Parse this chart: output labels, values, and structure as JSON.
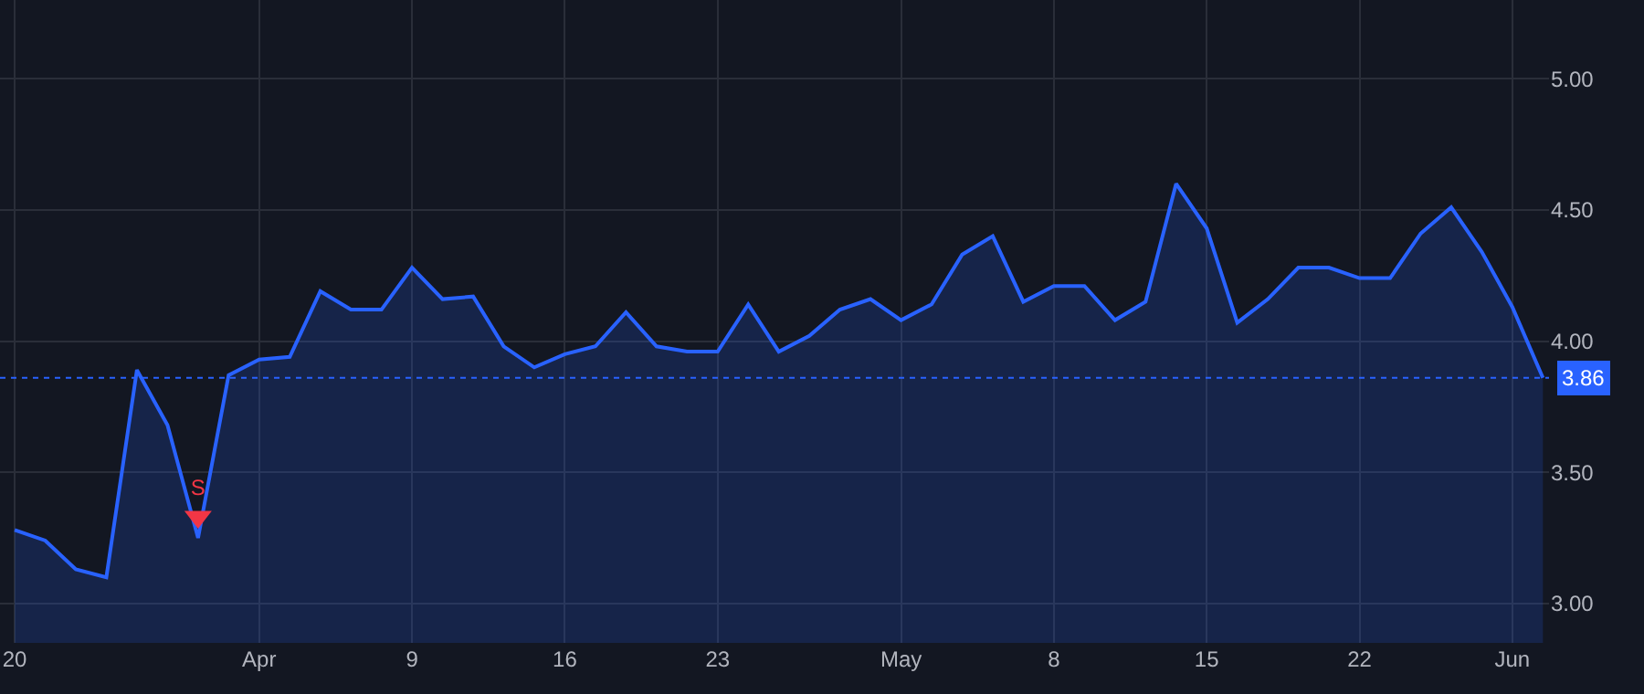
{
  "chart_data": {
    "type": "area",
    "categories": [
      "20",
      null,
      null,
      null,
      null,
      null,
      null,
      null,
      "Apr",
      null,
      null,
      null,
      null,
      "9",
      null,
      null,
      null,
      null,
      "16",
      null,
      null,
      null,
      null,
      "23",
      null,
      null,
      null,
      null,
      null,
      "May",
      null,
      null,
      null,
      null,
      "8",
      null,
      null,
      null,
      null,
      "15",
      null,
      null,
      null,
      null,
      "22",
      null,
      null,
      null,
      null,
      "Jun",
      null
    ],
    "series": [
      {
        "color": "#2962ff",
        "values": [
          3.28,
          3.24,
          3.13,
          3.1,
          3.89,
          3.68,
          3.25,
          3.87,
          3.93,
          3.94,
          4.19,
          4.12,
          4.12,
          4.28,
          4.16,
          4.17,
          3.98,
          3.9,
          3.95,
          3.98,
          4.11,
          3.98,
          3.96,
          3.96,
          4.14,
          3.96,
          4.02,
          4.12,
          4.16,
          4.08,
          4.14,
          4.33,
          4.4,
          4.15,
          4.21,
          4.21,
          4.08,
          4.15,
          4.6,
          4.43,
          4.07,
          4.16,
          4.28,
          4.28,
          4.24,
          4.24,
          4.41,
          4.51,
          4.34,
          4.13,
          3.86
        ]
      },
      {
        "type": "scatter",
        "color": "#f23645",
        "marker": "triangle",
        "values": [
          null,
          null,
          null,
          null,
          null,
          null,
          3.33,
          null,
          null,
          null,
          null,
          null,
          null,
          null,
          null,
          null,
          null,
          null,
          null,
          null,
          null,
          null,
          null,
          null,
          null,
          null,
          null,
          null,
          null,
          null,
          null,
          null,
          null,
          null,
          null,
          null,
          null,
          null,
          null,
          null,
          null,
          null,
          null,
          null,
          null,
          null,
          null,
          null,
          null,
          null,
          null
        ],
        "value_labels": [
          null,
          null,
          null,
          null,
          null,
          null,
          "S",
          null,
          null,
          null,
          null,
          null,
          null,
          null,
          null,
          null,
          null,
          null,
          null,
          null,
          null,
          null,
          null,
          null,
          null,
          null,
          null,
          null,
          null,
          null,
          null,
          null,
          null,
          null,
          null,
          null,
          null,
          null,
          null,
          null,
          null,
          null,
          null,
          null,
          null,
          null,
          null,
          null,
          null,
          null,
          null
        ]
      }
    ],
    "ylim": [
      2.85,
      5.3
    ],
    "yticks": [
      {
        "value": 3,
        "label": "3.00"
      },
      {
        "value": 3.5,
        "label": "3.50"
      },
      {
        "value": 4,
        "label": "4.00"
      },
      {
        "value": 4.5,
        "label": "4.50"
      },
      {
        "value": 5,
        "label": "5.00"
      }
    ],
    "ref_lines": [
      {
        "axis": "y",
        "value": 3.86,
        "label": "3.86",
        "color": "#2962ff",
        "line_style": "dotted"
      }
    ],
    "grid": true,
    "marker": "none"
  }
}
